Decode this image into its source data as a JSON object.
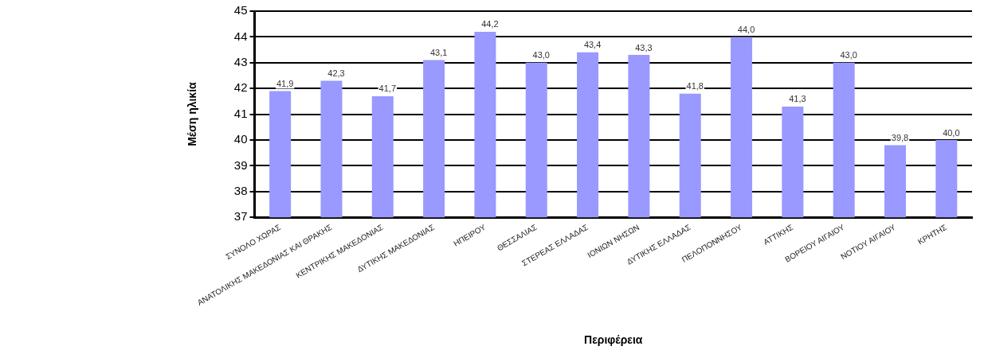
{
  "chart_data": {
    "type": "bar",
    "xlabel": "Περιφέρεια",
    "ylabel": "Μέση ηλικία",
    "categories": [
      "ΣΥΝΟΛΟ ΧΩΡΑΣ",
      "ΑΝΑΤΟΛΙΚΗΣ ΜΑΚΕΔΟΝΙΑΣ ΚΑΙ ΘΡΑΚΗΣ",
      "ΚΕΝΤΡΙΚΗΣ ΜΑΚΕΔΟΝΙΑΣ",
      "ΔΥΤΙΚΗΣ ΜΑΚΕΔΟΝΙΑΣ",
      "ΗΠΕΙΡΟΥ",
      "ΘΕΣΣΑΛΙΑΣ",
      "ΣΤΕΡΕΑΣ ΕΛΛΑΔΑΣ",
      "ΙΟΝΙΩΝ ΝΗΣΩΝ",
      "ΔΥΤΙΚΗΣ ΕΛΛΑΔΑΣ",
      "ΠΕΛΟΠΟΝΝΗΣΟΥ",
      "ΑΤΤΙΚΗΣ",
      "ΒΟΡΕΙΟΥ ΑΙΓΑΙΟΥ",
      "ΝΟΤΙΟΥ ΑΙΓΑΙΟΥ",
      "ΚΡΗΤΗΣ"
    ],
    "values": [
      41.9,
      42.3,
      41.7,
      43.1,
      44.2,
      43.0,
      43.4,
      43.3,
      41.8,
      44.0,
      41.3,
      43.0,
      39.8,
      40.0
    ],
    "value_labels": [
      "41,9",
      "42,3",
      "41,7",
      "43,1",
      "44,2",
      "43,0",
      "43,4",
      "43,3",
      "41,8",
      "44,0",
      "41,3",
      "43,0",
      "39,8",
      "40,0"
    ],
    "color": "#9999ff",
    "ylim": [
      37,
      45
    ],
    "yticks": [
      37,
      38,
      39,
      40,
      41,
      42,
      43,
      44,
      45
    ],
    "grid": "y"
  }
}
